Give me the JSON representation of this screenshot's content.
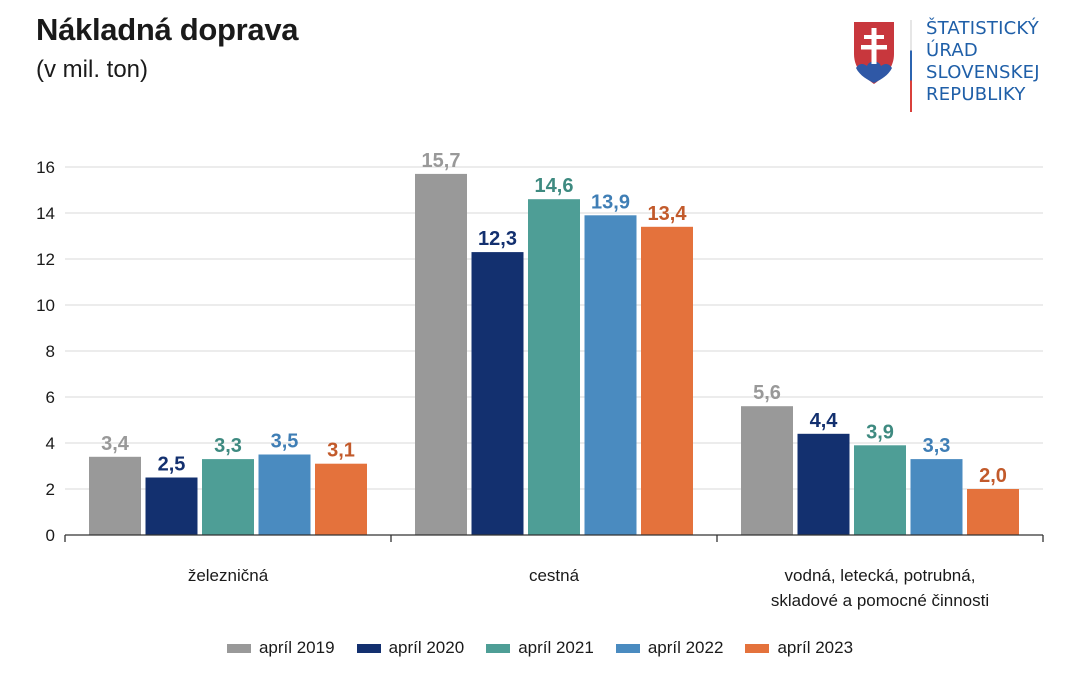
{
  "header": {
    "title": "Nákladná doprava",
    "subtitle": "(v mil. ton)"
  },
  "logo": {
    "lines": [
      "ŠTATISTICKÝ",
      "ÚRAD",
      "SLOVENSKEJ",
      "REPUBLIKY"
    ],
    "emblem": "slovak-coat-of-arms-icon"
  },
  "chart_data": {
    "type": "bar",
    "title": "Nákladná doprava",
    "subtitle": "(v mil. ton)",
    "xlabel": "",
    "ylabel": "",
    "ylim": [
      0,
      16
    ],
    "yticks": [
      0,
      2,
      4,
      6,
      8,
      10,
      12,
      14,
      16
    ],
    "grid": true,
    "legend_position": "bottom",
    "categories": [
      [
        "železničná"
      ],
      [
        "cestná"
      ],
      [
        "vodná, letecká, potrubná,",
        "skladové a pomocné činnosti"
      ]
    ],
    "series": [
      {
        "name": "apríl 2019",
        "values": [
          3.4,
          15.7,
          5.6
        ],
        "labels": [
          "3,4",
          "15,7",
          "5,6"
        ],
        "color": "#999999",
        "label_color": "#999999"
      },
      {
        "name": "apríl 2020",
        "values": [
          2.5,
          12.3,
          4.4
        ],
        "labels": [
          "2,5",
          "12,3",
          "4,4"
        ],
        "color": "#13306f",
        "label_color": "#13306f"
      },
      {
        "name": "apríl 2021",
        "values": [
          3.3,
          14.6,
          3.9
        ],
        "labels": [
          "3,3",
          "14,6",
          "3,9"
        ],
        "color": "#4e9e96",
        "label_color": "#3e8a80"
      },
      {
        "name": "apríl 2022",
        "values": [
          3.5,
          13.9,
          3.3
        ],
        "labels": [
          "3,5",
          "13,9",
          "3,3"
        ],
        "color": "#4a8bc0",
        "label_color": "#3f7eb5"
      },
      {
        "name": "apríl 2023",
        "values": [
          3.1,
          13.4,
          2.0
        ],
        "labels": [
          "3,1",
          "13,4",
          "2,0"
        ],
        "color": "#e4723c",
        "label_color": "#c25a2b"
      }
    ]
  }
}
